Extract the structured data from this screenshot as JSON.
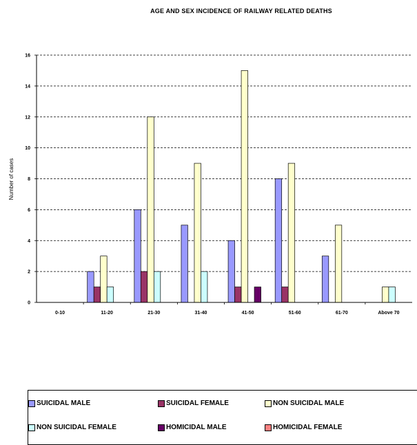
{
  "chart_data": {
    "type": "bar",
    "title": "AGE AND SEX INCIDENCE OF RAILWAY RELATED DEATHS",
    "ylabel": "Number of cases",
    "xlabel": "",
    "ylim": [
      0,
      16
    ],
    "yticks": [
      "0",
      "2",
      "4",
      "6",
      "8",
      "10",
      "12",
      "14",
      "16"
    ],
    "grid": "horizontal dashed",
    "legend_position": "bottom",
    "categories": [
      "0-10",
      "11-20",
      "21-30",
      "31-40",
      "41-50",
      "51-60",
      "61-70",
      "Above 70"
    ],
    "series": [
      {
        "name": "SUICIDAL MALE",
        "color": "#9999ff",
        "values": [
          0,
          2,
          6,
          5,
          4,
          8,
          3,
          0
        ]
      },
      {
        "name": "SUICIDAL FEMALE",
        "color": "#993366",
        "values": [
          0,
          1,
          2,
          0,
          1,
          1,
          0,
          0
        ]
      },
      {
        "name": "NON SUICIDAL MALE",
        "color": "#ffffcc",
        "values": [
          0,
          3,
          12,
          9,
          15,
          9,
          5,
          1
        ]
      },
      {
        "name": "NON SUICIDAL FEMALE",
        "color": "#ccffff",
        "values": [
          0,
          1,
          2,
          2,
          0,
          0,
          0,
          1
        ]
      },
      {
        "name": "HOMICIDAL MALE",
        "color": "#660066",
        "values": [
          0,
          0,
          0,
          0,
          1,
          0,
          0,
          0
        ]
      },
      {
        "name": "HOMICIDAL FEMALE",
        "color": "#ff8080",
        "values": [
          0,
          0,
          0,
          0,
          0,
          0,
          0,
          0
        ]
      }
    ]
  }
}
